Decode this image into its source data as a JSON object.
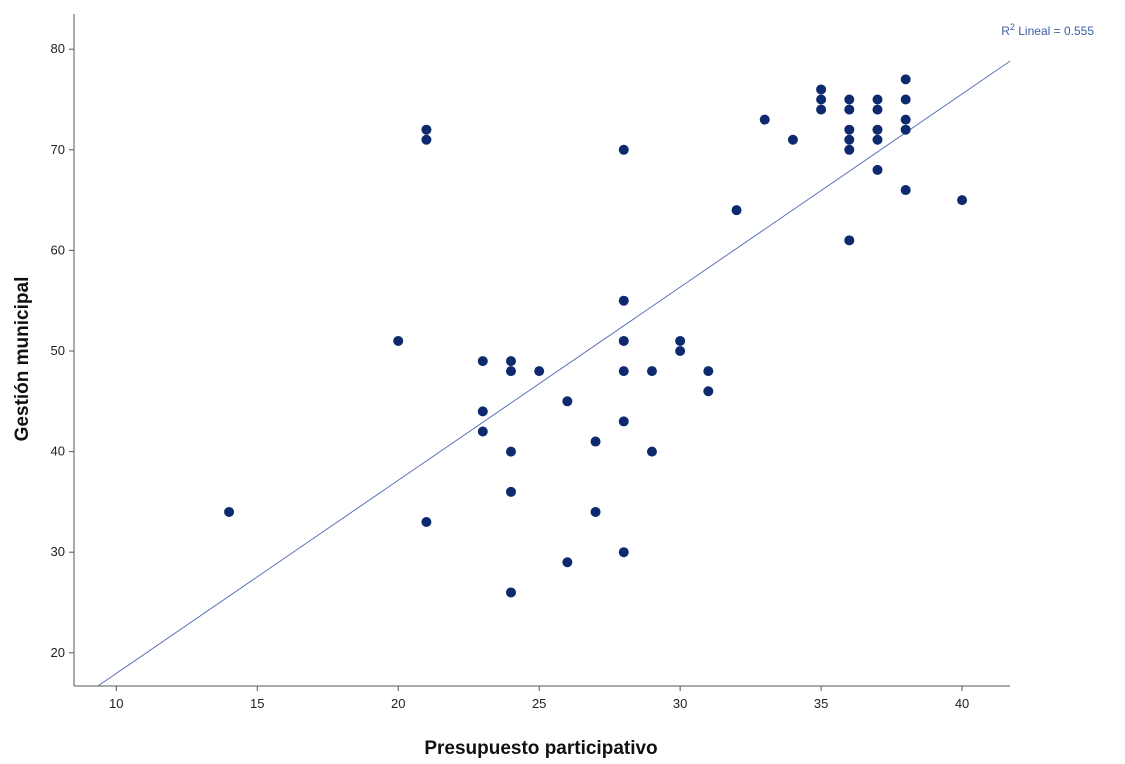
{
  "chart_data": {
    "type": "scatter",
    "xlabel": "Presupuesto participativo",
    "ylabel": "Gestión municipal",
    "xlim": [
      8.5,
      41.7
    ],
    "ylim": [
      16.7,
      83.5
    ],
    "xticks": [
      10,
      15,
      20,
      25,
      30,
      35,
      40
    ],
    "yticks": [
      20,
      30,
      40,
      50,
      60,
      70,
      80
    ],
    "grid": false,
    "fit_line": {
      "label_prefix": "R",
      "label_sup": "2",
      "label_suffix": " Lineal = 0.555",
      "intercept": -1.25,
      "slope": 1.92
    },
    "points": [
      {
        "x": 14,
        "y": 34
      },
      {
        "x": 20,
        "y": 51
      },
      {
        "x": 21,
        "y": 72
      },
      {
        "x": 21,
        "y": 71
      },
      {
        "x": 21,
        "y": 33
      },
      {
        "x": 23,
        "y": 49
      },
      {
        "x": 23,
        "y": 44
      },
      {
        "x": 23,
        "y": 42
      },
      {
        "x": 24,
        "y": 49
      },
      {
        "x": 24,
        "y": 48
      },
      {
        "x": 24,
        "y": 40
      },
      {
        "x": 24,
        "y": 36
      },
      {
        "x": 24,
        "y": 26
      },
      {
        "x": 25,
        "y": 48
      },
      {
        "x": 26,
        "y": 45
      },
      {
        "x": 26,
        "y": 29
      },
      {
        "x": 27,
        "y": 41
      },
      {
        "x": 27,
        "y": 34
      },
      {
        "x": 28,
        "y": 70
      },
      {
        "x": 28,
        "y": 55
      },
      {
        "x": 28,
        "y": 51
      },
      {
        "x": 28,
        "y": 48
      },
      {
        "x": 28,
        "y": 43
      },
      {
        "x": 28,
        "y": 30
      },
      {
        "x": 29,
        "y": 48
      },
      {
        "x": 29,
        "y": 40
      },
      {
        "x": 30,
        "y": 51
      },
      {
        "x": 30,
        "y": 50
      },
      {
        "x": 31,
        "y": 48
      },
      {
        "x": 31,
        "y": 46
      },
      {
        "x": 32,
        "y": 64
      },
      {
        "x": 33,
        "y": 73
      },
      {
        "x": 34,
        "y": 71
      },
      {
        "x": 35,
        "y": 76
      },
      {
        "x": 35,
        "y": 75
      },
      {
        "x": 35,
        "y": 74
      },
      {
        "x": 36,
        "y": 75
      },
      {
        "x": 36,
        "y": 74
      },
      {
        "x": 36,
        "y": 72
      },
      {
        "x": 36,
        "y": 71
      },
      {
        "x": 36,
        "y": 70
      },
      {
        "x": 36,
        "y": 61
      },
      {
        "x": 37,
        "y": 75
      },
      {
        "x": 37,
        "y": 74
      },
      {
        "x": 37,
        "y": 72
      },
      {
        "x": 37,
        "y": 71
      },
      {
        "x": 37,
        "y": 68
      },
      {
        "x": 38,
        "y": 77
      },
      {
        "x": 38,
        "y": 75
      },
      {
        "x": 38,
        "y": 73
      },
      {
        "x": 38,
        "y": 72
      },
      {
        "x": 38,
        "y": 66
      },
      {
        "x": 40,
        "y": 65
      }
    ],
    "colors": {
      "points": "#0d2a6e",
      "fit_line": "#5a72b8",
      "axis": "#555555"
    }
  }
}
